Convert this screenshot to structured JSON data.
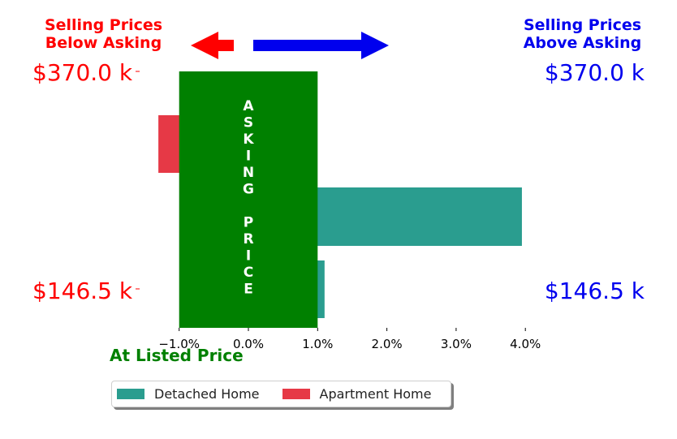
{
  "header": {
    "below_line1": "Selling Prices",
    "below_line2": "Below Asking",
    "above_line1": "Selling Prices",
    "above_line2": "Above Asking"
  },
  "price_labels": {
    "top_left": "$370.0 k",
    "top_right": "$370.0 k",
    "bottom_left": "$146.5 k",
    "bottom_right": "$146.5 k"
  },
  "colors": {
    "below": "#ff0000",
    "above": "#0000ee",
    "asking_band": "#008000",
    "detached": "#2a9d8f",
    "apartment": "#e63946"
  },
  "asking_band_text": [
    "A",
    "S",
    "K",
    "I",
    "N",
    "G",
    "",
    "P",
    "R",
    "I",
    "C",
    "E"
  ],
  "at_listed_price": "At Listed Price",
  "legend": {
    "detached": "Detached Home",
    "apartment": "Apartment Home"
  },
  "chart_data": {
    "type": "bar",
    "orientation": "horizontal",
    "xlim": [
      -1.0,
      4.0
    ],
    "x_ticks": [
      -1.0,
      0.0,
      1.0,
      2.0,
      3.0,
      4.0
    ],
    "x_tick_labels": [
      "−1.0%",
      "0.0%",
      "1.0%",
      "2.0%",
      "3.0%",
      "4.0%"
    ],
    "asking_band": [
      -1.0,
      1.0
    ],
    "bars": [
      {
        "series": "Apartment Home",
        "value": -1.3,
        "row": 0
      },
      {
        "series": "Detached Home",
        "value": 3.95,
        "row": 1
      },
      {
        "series": "Detached Home",
        "value": 1.1,
        "row": 2
      }
    ],
    "legend_position": "bottom"
  }
}
